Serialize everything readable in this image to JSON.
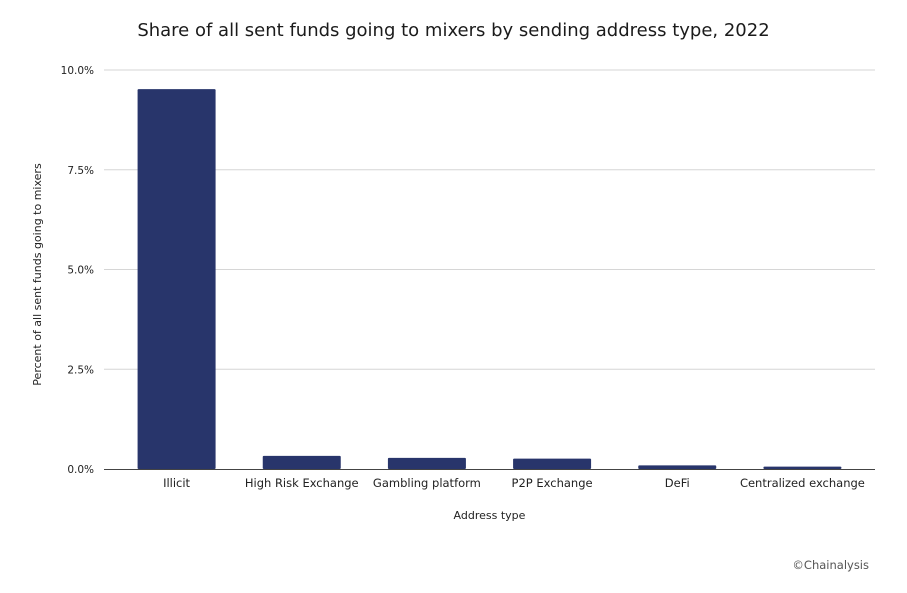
{
  "chart_data": {
    "type": "bar",
    "title": "Share of all sent funds going to mixers by sending address type, 2022",
    "xlabel": "Address type",
    "ylabel": "Percent of all sent funds going to mixers",
    "categories": [
      "Illicit",
      "High Risk Exchange",
      "Gambling platform",
      "P2P Exchange",
      "DeFi",
      "Centralized exchange"
    ],
    "values": [
      9.52,
      0.33,
      0.28,
      0.26,
      0.09,
      0.06
    ],
    "ylim": [
      0,
      10
    ],
    "yticks": [
      0,
      2.5,
      5,
      7.5,
      10
    ],
    "ytick_labels": [
      "0.0%",
      "2.5%",
      "5.0%",
      "7.5%",
      "10.0%"
    ],
    "grid": true,
    "bar_color": "#28356b",
    "gridline_color": "#d6d6d6",
    "axis_color": "#444444"
  },
  "credit": "©Chainalysis"
}
